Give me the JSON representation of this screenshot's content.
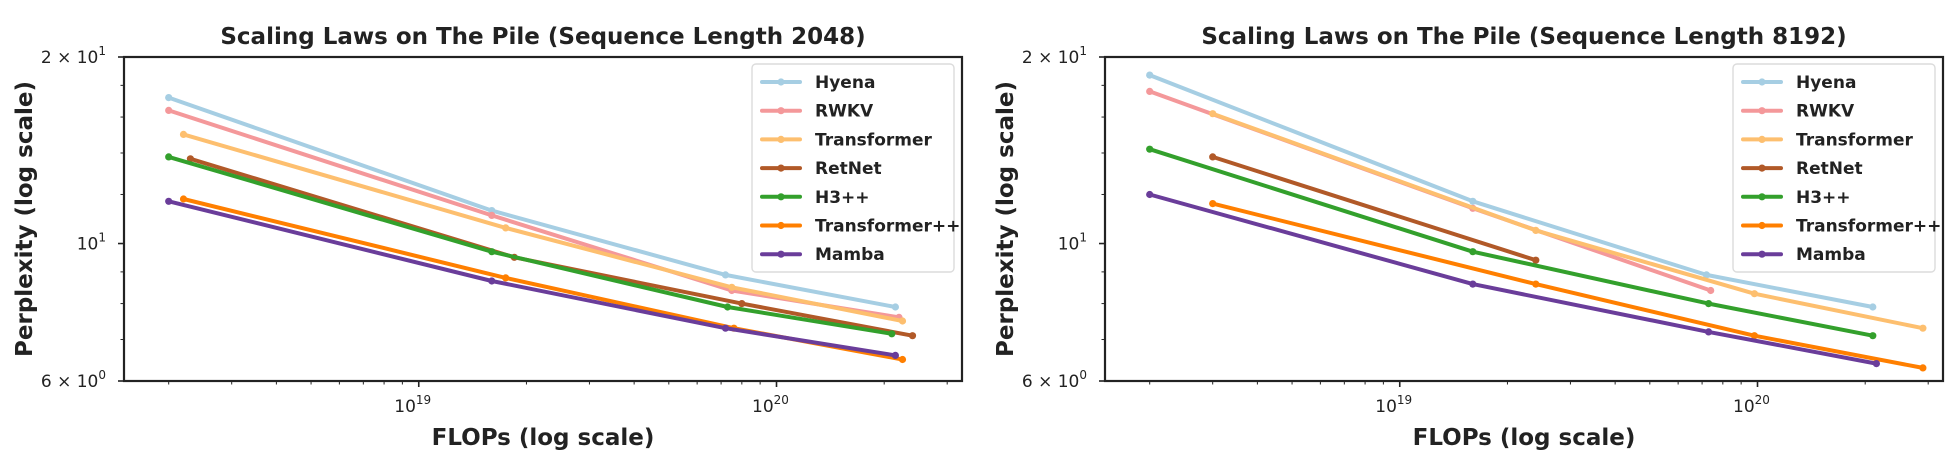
{
  "chart_data": [
    {
      "type": "line",
      "title": "Scaling Laws on The Pile (Sequence Length 2048)",
      "xlabel": "FLOPs (log scale)",
      "ylabel": "Perplexity (log scale)",
      "xscale": "log",
      "yscale": "log",
      "xlim": [
        1.5e+18,
        3.3e+20
      ],
      "ylim": [
        6,
        20
      ],
      "xticks": [
        {
          "value": 1e+19,
          "base": "10",
          "exp": "19"
        },
        {
          "value": 1e+20,
          "base": "10",
          "exp": "20"
        }
      ],
      "yticks": [
        {
          "value": 20,
          "mantissa": "2 × 10",
          "exp": "1"
        },
        {
          "value": 10,
          "mantissa": "10",
          "exp": "1"
        },
        {
          "value": 6,
          "mantissa": "6 × 10",
          "exp": "0"
        }
      ],
      "grid": false,
      "legend": "top-right",
      "series": [
        {
          "name": "Hyena",
          "color": "#a6cee3",
          "x": [
            2e+18,
            1.6e+19,
            7.2e+19,
            2.15e+20
          ],
          "y": [
            17.2,
            11.3,
            8.9,
            7.9
          ]
        },
        {
          "name": "RWKV",
          "color": "#f4989a",
          "x": [
            2e+18,
            1.6e+19,
            7.5e+19,
            2.2e+20
          ],
          "y": [
            16.4,
            11.1,
            8.4,
            7.6
          ]
        },
        {
          "name": "Transformer",
          "color": "#fdbf6f",
          "x": [
            2.2e+18,
            1.75e+19,
            7.5e+19,
            2.25e+20
          ],
          "y": [
            15.0,
            10.6,
            8.5,
            7.5
          ]
        },
        {
          "name": "RetNet",
          "color": "#b15928",
          "x": [
            2.3e+18,
            1.85e+19,
            8e+19,
            2.4e+20
          ],
          "y": [
            13.7,
            9.5,
            8.0,
            7.1
          ]
        },
        {
          "name": "H3++",
          "color": "#33a02c",
          "x": [
            2e+18,
            1.6e+19,
            7.3e+19,
            2.1e+20
          ],
          "y": [
            13.8,
            9.7,
            7.9,
            7.15
          ]
        },
        {
          "name": "Transformer++",
          "color": "#ff7f00",
          "x": [
            2.2e+18,
            1.75e+19,
            7.6e+19,
            2.25e+20
          ],
          "y": [
            11.8,
            8.8,
            7.3,
            6.5
          ]
        },
        {
          "name": "Mamba",
          "color": "#6a3d9a",
          "x": [
            2e+18,
            1.6e+19,
            7.2e+19,
            2.15e+20
          ],
          "y": [
            11.7,
            8.7,
            7.3,
            6.6
          ]
        }
      ]
    },
    {
      "type": "line",
      "title": "Scaling Laws on The Pile (Sequence Length 8192)",
      "xlabel": "FLOPs (log scale)",
      "ylabel": "Perplexity (log scale)",
      "xscale": "log",
      "yscale": "log",
      "xlim": [
        1.5e+18,
        3.3e+20
      ],
      "ylim": [
        6,
        20
      ],
      "xticks": [
        {
          "value": 1e+19,
          "base": "10",
          "exp": "19"
        },
        {
          "value": 1e+20,
          "base": "10",
          "exp": "20"
        }
      ],
      "yticks": [
        {
          "value": 20,
          "mantissa": "2 × 10",
          "exp": "1"
        },
        {
          "value": 10,
          "mantissa": "10",
          "exp": "1"
        },
        {
          "value": 6,
          "mantissa": "6 × 10",
          "exp": "0"
        }
      ],
      "grid": false,
      "legend": "top-right",
      "series": [
        {
          "name": "Hyena",
          "color": "#a6cee3",
          "x": [
            2e+18,
            1.6e+19,
            7.2e+19,
            2.1e+20
          ],
          "y": [
            18.7,
            11.7,
            8.9,
            7.9
          ]
        },
        {
          "name": "RWKV",
          "color": "#f4989a",
          "x": [
            2e+18,
            1.6e+19,
            7.4e+19
          ],
          "y": [
            17.6,
            11.4,
            8.4
          ]
        },
        {
          "name": "Transformer",
          "color": "#fdbf6f",
          "x": [
            3e+18,
            2.4e+19,
            9.8e+19,
            2.9e+20
          ],
          "y": [
            16.2,
            10.5,
            8.3,
            7.3
          ]
        },
        {
          "name": "RetNet",
          "color": "#b15928",
          "x": [
            3e+18,
            2.4e+19
          ],
          "y": [
            13.8,
            9.4
          ]
        },
        {
          "name": "H3++",
          "color": "#33a02c",
          "x": [
            2e+18,
            1.6e+19,
            7.3e+19,
            2.1e+20
          ],
          "y": [
            14.2,
            9.7,
            8.0,
            7.1
          ]
        },
        {
          "name": "Transformer++",
          "color": "#ff7f00",
          "x": [
            3e+18,
            2.4e+19,
            9.8e+19,
            2.9e+20
          ],
          "y": [
            11.6,
            8.6,
            7.1,
            6.3
          ]
        },
        {
          "name": "Mamba",
          "color": "#6a3d9a",
          "x": [
            2e+18,
            1.6e+19,
            7.3e+19,
            2.15e+20
          ],
          "y": [
            12.0,
            8.6,
            7.2,
            6.4
          ]
        }
      ]
    }
  ]
}
